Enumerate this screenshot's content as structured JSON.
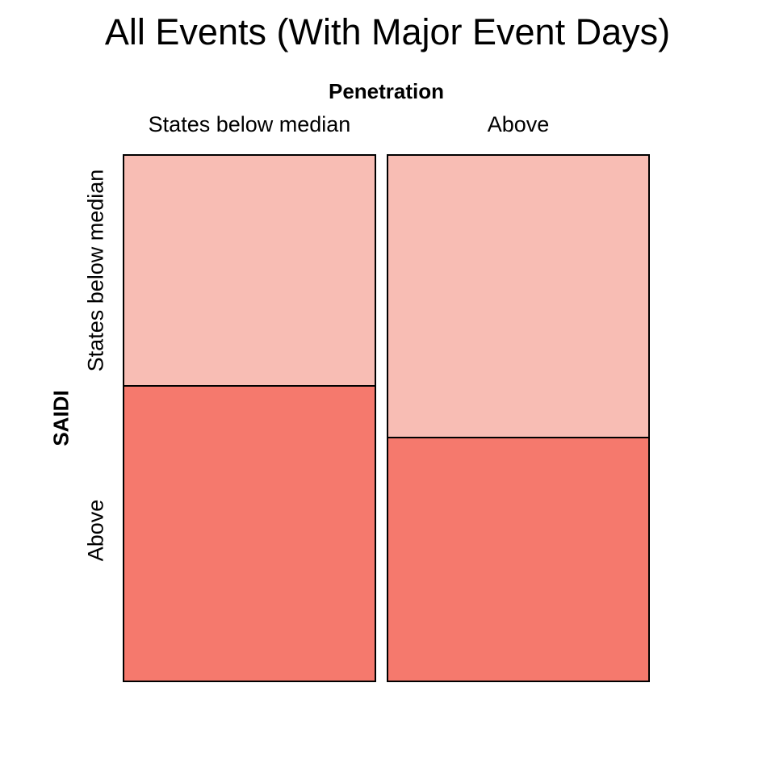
{
  "chart_data": {
    "type": "mosaic",
    "title": "All Events (With Major Event Days)",
    "xlabel": "Penetration",
    "ylabel": "SAIDI",
    "x_categories": [
      "States below median",
      "Above"
    ],
    "y_categories": [
      "States below median",
      "Above"
    ],
    "legend": "none",
    "colors": {
      "row_below_median": "#F8BDB4",
      "row_above": "#F5796D",
      "border": "#000000"
    },
    "columns": [
      {
        "x_label": "States below median",
        "width_fraction": 0.49,
        "cells": [
          {
            "y_label": "States below median",
            "fraction_of_column": 0.44,
            "color": "#F8BDB4"
          },
          {
            "y_label": "Above",
            "fraction_of_column": 0.56,
            "color": "#F5796D"
          }
        ]
      },
      {
        "x_label": "Above",
        "width_fraction": 0.51,
        "cells": [
          {
            "y_label": "States below median",
            "fraction_of_column": 0.538,
            "color": "#F8BDB4"
          },
          {
            "y_label": "Above",
            "fraction_of_column": 0.462,
            "color": "#F5796D"
          }
        ]
      }
    ]
  }
}
